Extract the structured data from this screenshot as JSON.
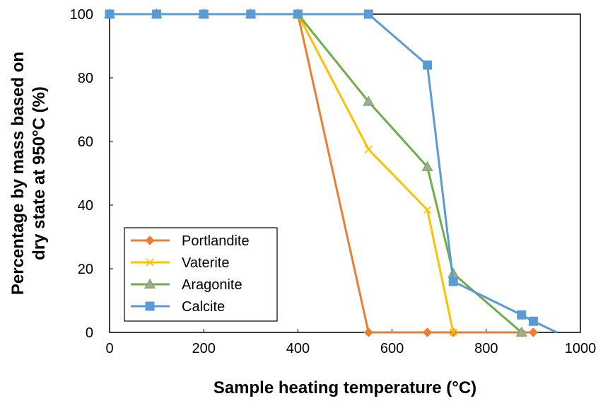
{
  "chart_data": {
    "type": "line",
    "xlabel": "Sample heating temperature (°C)",
    "ylabel_lines": [
      "Percentage by mass based on",
      "dry state at 950°C (%)"
    ],
    "xlim": [
      0,
      1000
    ],
    "ylim": [
      0,
      100
    ],
    "xticks": [
      0,
      200,
      400,
      600,
      800,
      1000
    ],
    "yticks": [
      0,
      20,
      40,
      60,
      80,
      100
    ],
    "grid": false,
    "legend_position": "bottom-left",
    "series": [
      {
        "name": "Portlandite",
        "color": "#ED7D31",
        "marker": "diamond",
        "x": [
          0,
          100,
          200,
          300,
          400,
          550,
          675,
          730,
          875,
          900
        ],
        "y": [
          100,
          100,
          100,
          100,
          100,
          0,
          0,
          0,
          0,
          0
        ]
      },
      {
        "name": "Vaterite",
        "color": "#FFC000",
        "marker": "x",
        "x": [
          0,
          100,
          200,
          300,
          400,
          550,
          675,
          730
        ],
        "y": [
          100,
          100,
          100,
          100,
          100,
          57.5,
          38.5,
          0
        ]
      },
      {
        "name": "Aragonite",
        "color": "#70AD47",
        "marker": "triangle",
        "marker_fill": "#A5A5A5",
        "x": [
          0,
          100,
          200,
          300,
          400,
          550,
          675,
          730,
          875
        ],
        "y": [
          100,
          100,
          100,
          100,
          100,
          72.5,
          52,
          18.5,
          0
        ]
      },
      {
        "name": "Calcite",
        "color": "#5B9BD5",
        "marker": "square",
        "x": [
          0,
          100,
          200,
          300,
          400,
          550,
          675,
          730,
          875,
          900,
          950
        ],
        "y": [
          100,
          100,
          100,
          100,
          100,
          100,
          84,
          16,
          5.5,
          3.5,
          0
        ],
        "marker_mask": [
          1,
          1,
          1,
          1,
          1,
          1,
          1,
          1,
          1,
          1,
          0
        ]
      }
    ]
  }
}
